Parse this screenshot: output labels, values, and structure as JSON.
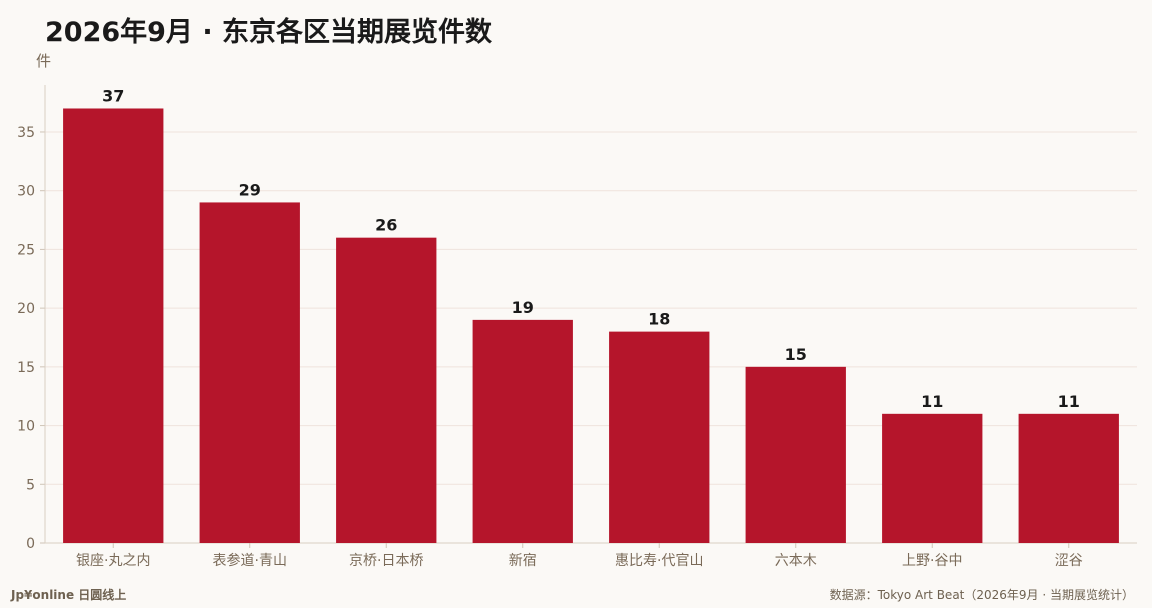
{
  "chart_data": {
    "type": "bar",
    "title": "2026年9月 · 东京各区当期展览件数",
    "ylabel": "件",
    "categories": [
      "银座·丸之内",
      "表参道·青山",
      "京桥·日本桥",
      "新宿",
      "惠比寿·代官山",
      "六本木",
      "上野·谷中",
      "涩谷"
    ],
    "values": [
      37,
      29,
      26,
      19,
      18,
      15,
      11,
      11
    ],
    "ylim": [
      0,
      39
    ],
    "yticks": [
      0,
      5,
      10,
      15,
      20,
      25,
      30,
      35
    ],
    "grid": true,
    "legend": "none",
    "bar_color": "#b5152b"
  },
  "footer": {
    "brand": "Jp¥online 日圆线上",
    "source": "数据源：Tokyo Art Beat（2026年9月 · 当期展览统计）"
  }
}
